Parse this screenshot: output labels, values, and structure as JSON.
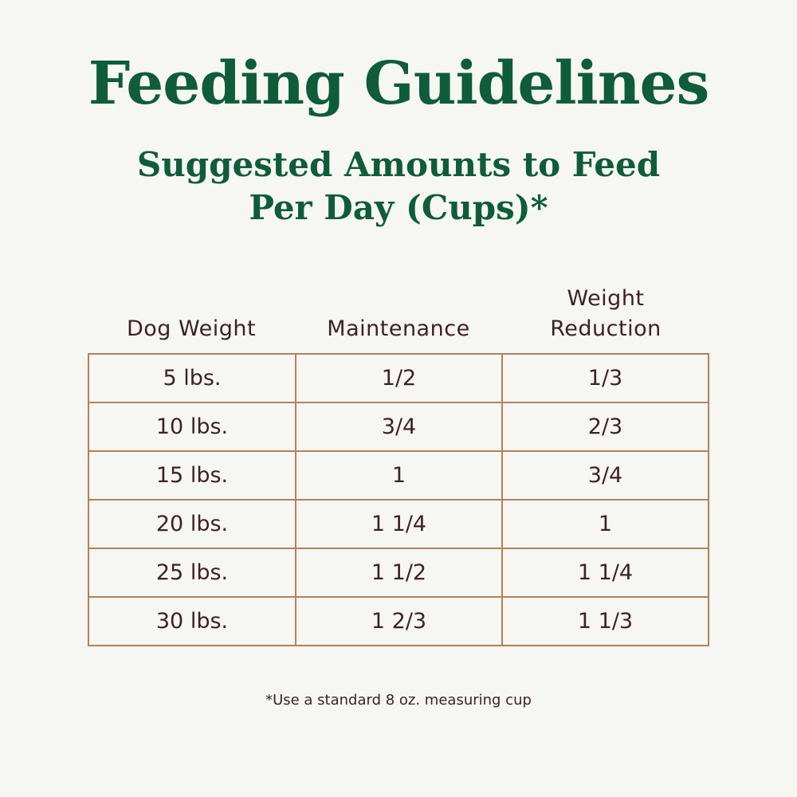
{
  "title": "Feeding Guidelines",
  "subtitle_line1": "Suggested Amounts to Feed",
  "subtitle_line2": "Per Day (Cups)*",
  "columns": [
    "Dog Weight",
    "Maintenance",
    "Weight Reduction"
  ],
  "rows": [
    [
      "5 lbs.",
      "1/2",
      "1/3"
    ],
    [
      "10 lbs.",
      "3/4",
      "2/3"
    ],
    [
      "15 lbs.",
      "1",
      "3/4"
    ],
    [
      "20 lbs.",
      "1 1/4",
      "1"
    ],
    [
      "25 lbs.",
      "1 1/2",
      "1 1/4"
    ],
    [
      "30 lbs.",
      "1 2/3",
      "1 1/3"
    ]
  ],
  "footnote": "*Use a standard 8 oz. measuring cup",
  "colors": {
    "heading": "#0f5c3a",
    "text": "#3d2226",
    "border": "#b0835a",
    "background": "#f6f6f2"
  }
}
